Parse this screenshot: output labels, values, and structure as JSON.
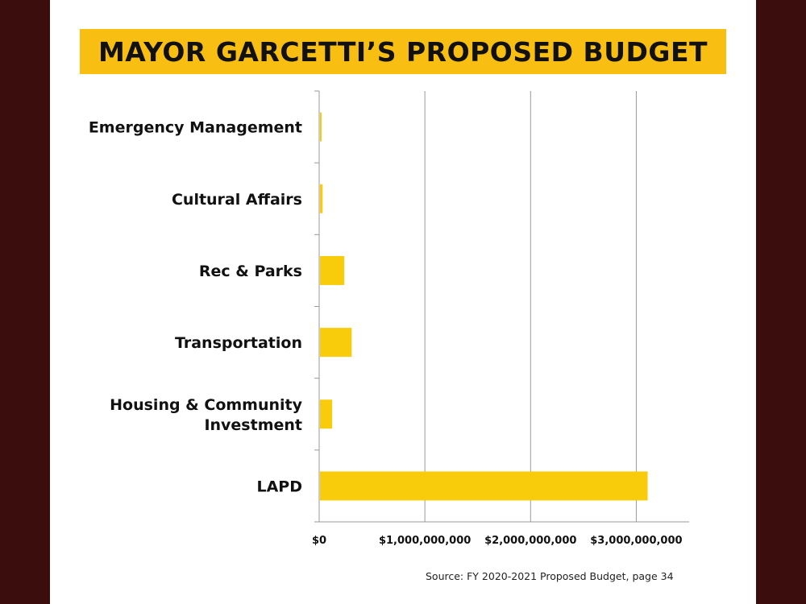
{
  "slide": {
    "title": "MAYOR GARCETTI’S PROPOSED BUDGET",
    "source": "Source: FY 2020-2021 Proposed Budget, page 34"
  },
  "colors": {
    "background": "#3b0d0c",
    "title_bar": "#f8bf12",
    "bar": "#f8cc0a",
    "grid": "#999999"
  },
  "chart_data": {
    "type": "bar",
    "orientation": "horizontal",
    "title": "MAYOR GARCETTI’S PROPOSED BUDGET",
    "xlabel": "",
    "ylabel": "",
    "xlim": [
      0,
      3500000000
    ],
    "grid": "vertical gridlines",
    "legend": "none",
    "categories": [
      "Emergency Management",
      "Cultural Affairs",
      "Rec & Parks",
      "Transportation",
      "Housing & Community Investment",
      "LAPD"
    ],
    "category_lines": [
      [
        "Emergency Management"
      ],
      [
        "Cultural Affairs"
      ],
      [
        "Rec & Parks"
      ],
      [
        "Transportation"
      ],
      [
        "Housing & Community",
        "Investment"
      ],
      [
        "LAPD"
      ]
    ],
    "values": [
      7000000,
      25000000,
      230000000,
      300000000,
      115000000,
      3100000000
    ],
    "ticks": [
      0,
      1000000000,
      2000000000,
      3000000000
    ],
    "tick_labels": [
      "$0",
      "$1,000,000,000",
      "$2,000,000,000",
      "$3,000,000,000"
    ]
  }
}
